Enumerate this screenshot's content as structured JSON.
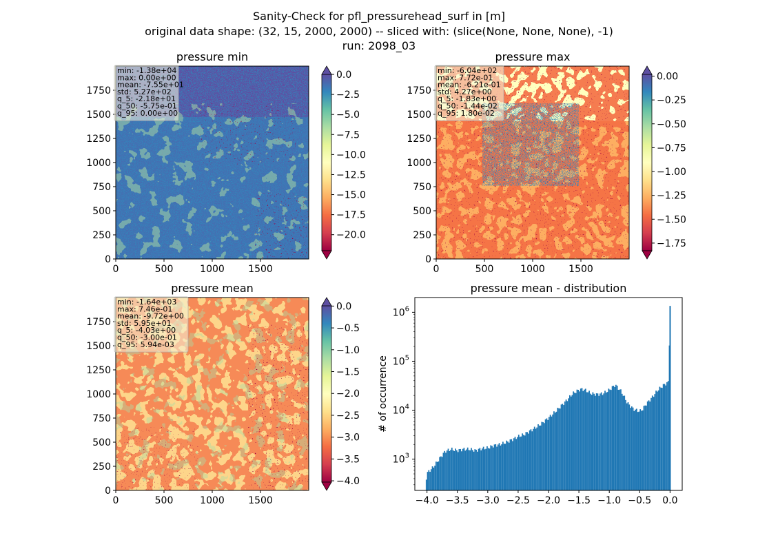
{
  "figure": {
    "suptitle": [
      "Sanity-Check for pfl_pressurehead_surf in [m]",
      "original data shape: (32, 15, 2000, 2000) -- sliced with: (slice(None, None, None), -1)",
      "run: 2098_03"
    ]
  },
  "chart_data": [
    {
      "type": "heatmap",
      "title": "pressure min",
      "colormap": "Spectral",
      "xlim": [
        0,
        2000
      ],
      "ylim": [
        0,
        2000
      ],
      "xticks": [
        "0",
        "500",
        "1000",
        "1500"
      ],
      "yticks": [
        "0",
        "250",
        "500",
        "750",
        "1000",
        "1250",
        "1500",
        "1750"
      ],
      "colorbar": {
        "range": [
          -22,
          0
        ],
        "extend": "both",
        "ticks": [
          "0.0",
          "−2.5",
          "−5.0",
          "−7.5",
          "−10.0",
          "−12.5",
          "−15.0",
          "−17.5",
          "−20.0"
        ]
      },
      "stats": [
        "min: -1.38e+04",
        "max: 0.00e+00",
        "mean: -7.55e+01",
        "std: 5.27e+02",
        "q_5: -2.18e+01",
        "q_50: -5.75e-01",
        "q_95: 0.00e+00"
      ]
    },
    {
      "type": "heatmap",
      "title": "pressure max",
      "colormap": "Spectral",
      "xlim": [
        0,
        2000
      ],
      "ylim": [
        0,
        2000
      ],
      "xticks": [
        "0",
        "500",
        "1000",
        "1500"
      ],
      "yticks": [
        "0",
        "250",
        "500",
        "750",
        "1000",
        "1250",
        "1500",
        "1750"
      ],
      "colorbar": {
        "range": [
          -1.83,
          0.018
        ],
        "extend": "both",
        "ticks": [
          "0.00",
          "−0.25",
          "−0.50",
          "−0.75",
          "−1.00",
          "−1.25",
          "−1.50",
          "−1.75"
        ]
      },
      "stats": [
        "min: -6.04e+02",
        "max: 7.72e-01",
        "mean: -6.21e-01",
        "std: 4.27e+00",
        "q_5: -1.83e+00",
        "q_50: -1.44e-02",
        "q_95: 1.80e-02"
      ]
    },
    {
      "type": "heatmap",
      "title": "pressure mean",
      "colormap": "Spectral",
      "xlim": [
        0,
        2000
      ],
      "ylim": [
        0,
        2000
      ],
      "xticks": [
        "0",
        "500",
        "1000",
        "1500"
      ],
      "yticks": [
        "0",
        "250",
        "500",
        "750",
        "1000",
        "1250",
        "1500",
        "1750"
      ],
      "colorbar": {
        "range": [
          -4.03,
          0.006
        ],
        "extend": "both",
        "ticks": [
          "0.0",
          "−0.5",
          "−1.0",
          "−1.5",
          "−2.0",
          "−2.5",
          "−3.0",
          "−3.5",
          "−4.0"
        ]
      },
      "stats": [
        "min: -1.64e+03",
        "max: 7.46e-01",
        "mean: -9.72e+00",
        "std: 5.95e+01",
        "q_5: -4.03e+00",
        "q_50: -3.00e-01",
        "q_95: 5.94e-03"
      ]
    },
    {
      "type": "bar",
      "title": "pressure mean - distribution",
      "xlabel": "",
      "ylabel": "# of occurrence",
      "yscale": "log",
      "xlim": [
        -4.2,
        0.2
      ],
      "ylim": [
        230,
        2000000
      ],
      "xticks": [
        "−4.0",
        "−3.5",
        "−3.0",
        "−2.5",
        "−2.0",
        "−1.5",
        "−1.0",
        "−0.5",
        "0.0"
      ],
      "yticks": [
        "10^3",
        "10^4",
        "10^5",
        "10^6"
      ],
      "color": "#1f77b4",
      "anchors": [
        [
          -4.02,
          330
        ],
        [
          -4.0,
          520
        ],
        [
          -3.9,
          680
        ],
        [
          -3.8,
          1000
        ],
        [
          -3.7,
          1450
        ],
        [
          -3.6,
          1600
        ],
        [
          -3.5,
          1500
        ],
        [
          -3.4,
          1600
        ],
        [
          -3.3,
          1600
        ],
        [
          -3.2,
          1500
        ],
        [
          -3.1,
          1650
        ],
        [
          -3.0,
          1700
        ],
        [
          -2.9,
          1900
        ],
        [
          -2.8,
          2000
        ],
        [
          -2.7,
          2200
        ],
        [
          -2.6,
          2500
        ],
        [
          -2.5,
          2900
        ],
        [
          -2.4,
          3200
        ],
        [
          -2.3,
          3800
        ],
        [
          -2.2,
          4500
        ],
        [
          -2.1,
          5500
        ],
        [
          -2.0,
          7000
        ],
        [
          -1.9,
          9000
        ],
        [
          -1.8,
          12000
        ],
        [
          -1.7,
          16000
        ],
        [
          -1.6,
          22000
        ],
        [
          -1.5,
          26000
        ],
        [
          -1.45,
          27000
        ],
        [
          -1.4,
          26000
        ],
        [
          -1.3,
          22000
        ],
        [
          -1.2,
          21000
        ],
        [
          -1.1,
          22000
        ],
        [
          -1.0,
          26000
        ],
        [
          -0.9,
          33000
        ],
        [
          -0.8,
          24000
        ],
        [
          -0.7,
          14000
        ],
        [
          -0.6,
          10500
        ],
        [
          -0.5,
          9500
        ],
        [
          -0.45,
          10500
        ],
        [
          -0.4,
          13000
        ],
        [
          -0.3,
          18000
        ],
        [
          -0.2,
          26000
        ],
        [
          -0.1,
          33000
        ],
        [
          -0.02,
          38000
        ],
        [
          0.0,
          1350000
        ]
      ],
      "bin_width": 0.02
    }
  ]
}
